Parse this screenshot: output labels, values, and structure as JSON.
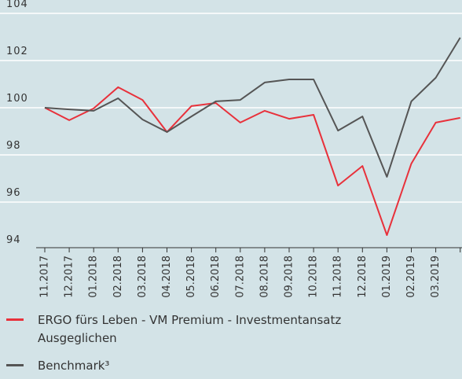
{
  "chart_data": {
    "type": "line",
    "categories": [
      "11.2017",
      "12.2017",
      "01.2018",
      "02.2018",
      "03.2018",
      "04.2018",
      "05.2018",
      "06.2018",
      "07.2018",
      "08.2018",
      "09.2018",
      "10.2018",
      "11.2018",
      "12.2018",
      "01.2019",
      "02.2019",
      "03.2019",
      null
    ],
    "series": [
      {
        "name": "ERGO fürs Leben - VM Premium - Investmentansatz Ausgeglichen",
        "color": "#e8313b",
        "values": [
          100,
          99.47,
          99.97,
          100.87,
          100.33,
          98.97,
          100.07,
          100.2,
          99.37,
          99.87,
          99.53,
          99.7,
          96.7,
          97.53,
          94.6,
          97.63,
          99.37,
          99.57
        ]
      },
      {
        "name": "Benchmark³",
        "color": "#555555",
        "values": [
          100,
          99.93,
          99.87,
          100.4,
          99.5,
          98.97,
          99.63,
          100.27,
          100.33,
          101.07,
          101.2,
          101.2,
          99.03,
          99.63,
          97.07,
          100.27,
          101.27,
          102.97
        ]
      }
    ],
    "ylim": [
      94,
      104
    ],
    "yticks": [
      94,
      96,
      98,
      100,
      102,
      104
    ],
    "grid": true
  }
}
